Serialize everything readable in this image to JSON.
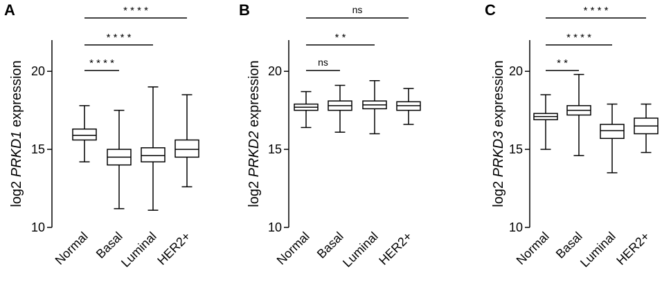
{
  "chart_data": [
    {
      "type": "boxplot",
      "panel": "A",
      "ylabel_prefix": "log2 ",
      "ylabel_gene": "PRKD1",
      "ylabel_suffix": " expression",
      "ylim": [
        10,
        22
      ],
      "yticks": [
        10,
        15,
        20
      ],
      "categories": [
        "Normal",
        "Basal",
        "Luminal",
        "HER2+"
      ],
      "boxes": [
        {
          "min": 14.2,
          "q1": 15.6,
          "median": 15.9,
          "q3": 16.3,
          "max": 17.8
        },
        {
          "min": 11.2,
          "q1": 14.0,
          "median": 14.5,
          "q3": 15.0,
          "max": 17.5
        },
        {
          "min": 11.1,
          "q1": 14.2,
          "median": 14.6,
          "q3": 15.1,
          "max": 19.0
        },
        {
          "min": 12.6,
          "q1": 14.5,
          "median": 15.0,
          "q3": 15.6,
          "max": 18.5
        }
      ],
      "comparisons": [
        {
          "from": 0,
          "to": 1,
          "label": "* * * *"
        },
        {
          "from": 0,
          "to": 2,
          "label": "* * * *"
        },
        {
          "from": 0,
          "to": 3,
          "label": "* * * *"
        }
      ]
    },
    {
      "type": "boxplot",
      "panel": "B",
      "ylabel_prefix": "log2 ",
      "ylabel_gene": "PRKD2",
      "ylabel_suffix": " expression",
      "ylim": [
        10,
        22
      ],
      "yticks": [
        10,
        15,
        20
      ],
      "categories": [
        "Normal",
        "Basal",
        "Luminal",
        "HER2+"
      ],
      "boxes": [
        {
          "min": 16.4,
          "q1": 17.5,
          "median": 17.7,
          "q3": 17.9,
          "max": 18.7
        },
        {
          "min": 16.1,
          "q1": 17.5,
          "median": 17.8,
          "q3": 18.1,
          "max": 19.1
        },
        {
          "min": 16.0,
          "q1": 17.6,
          "median": 17.85,
          "q3": 18.1,
          "max": 19.4
        },
        {
          "min": 16.6,
          "q1": 17.5,
          "median": 17.8,
          "q3": 18.05,
          "max": 18.9
        }
      ],
      "comparisons": [
        {
          "from": 0,
          "to": 1,
          "label": "ns"
        },
        {
          "from": 0,
          "to": 2,
          "label": "* *"
        },
        {
          "from": 0,
          "to": 3,
          "label": "ns"
        }
      ]
    },
    {
      "type": "boxplot",
      "panel": "C",
      "ylabel_prefix": "log2 ",
      "ylabel_gene": "PRKD3",
      "ylabel_suffix": " expression",
      "ylim": [
        10,
        22
      ],
      "yticks": [
        10,
        15,
        20
      ],
      "categories": [
        "Normal",
        "Basal",
        "Luminal",
        "HER2+"
      ],
      "boxes": [
        {
          "min": 15.0,
          "q1": 16.9,
          "median": 17.1,
          "q3": 17.3,
          "max": 18.5
        },
        {
          "min": 14.6,
          "q1": 17.2,
          "median": 17.5,
          "q3": 17.8,
          "max": 19.8
        },
        {
          "min": 13.5,
          "q1": 15.7,
          "median": 16.2,
          "q3": 16.6,
          "max": 17.9
        },
        {
          "min": 14.8,
          "q1": 16.0,
          "median": 16.5,
          "q3": 17.0,
          "max": 17.9
        }
      ],
      "comparisons": [
        {
          "from": 0,
          "to": 1,
          "label": "* *"
        },
        {
          "from": 0,
          "to": 2,
          "label": "* * * *"
        },
        {
          "from": 0,
          "to": 3,
          "label": "* * * *"
        }
      ]
    }
  ]
}
